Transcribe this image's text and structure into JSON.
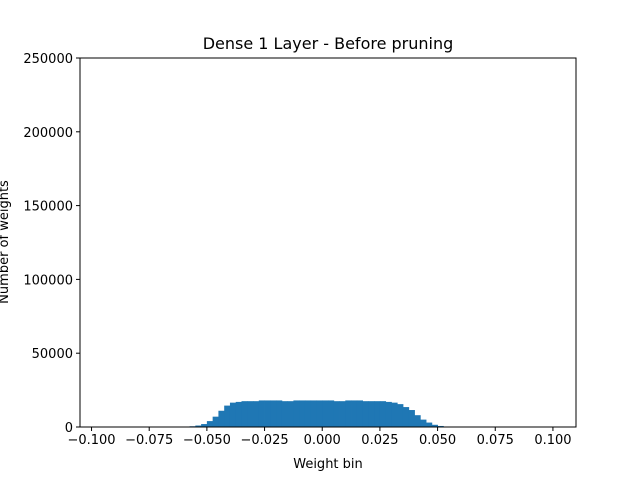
{
  "chart_data": {
    "type": "bar",
    "title": "Dense 1 Layer - Before pruning",
    "xlabel": "Weight bin",
    "ylabel": "Number of weights",
    "xlim": [
      -0.105,
      0.11
    ],
    "ylim": [
      0,
      250000
    ],
    "xticks": [
      -0.1,
      -0.075,
      -0.05,
      -0.025,
      0.0,
      0.025,
      0.05,
      0.075,
      0.1
    ],
    "xtick_labels": [
      "−0.100",
      "−0.075",
      "−0.050",
      "−0.025",
      "0.000",
      "0.025",
      "0.050",
      "0.075",
      "0.100"
    ],
    "yticks": [
      0,
      50000,
      100000,
      150000,
      200000,
      250000
    ],
    "ytick_labels": [
      "0",
      "50000",
      "100000",
      "150000",
      "200000",
      "250000"
    ],
    "grid": false,
    "bar_color": "#1f77b4",
    "bin_width": 0.0025,
    "bin_left_edges": [
      -0.0575,
      -0.055,
      -0.0525,
      -0.05,
      -0.0475,
      -0.045,
      -0.0425,
      -0.04,
      -0.0375,
      -0.035,
      -0.0325,
      -0.03,
      -0.0275,
      -0.025,
      -0.0225,
      -0.02,
      -0.0175,
      -0.015,
      -0.0125,
      -0.01,
      -0.0075,
      -0.005,
      -0.0025,
      0.0,
      0.0025,
      0.005,
      0.0075,
      0.01,
      0.0125,
      0.015,
      0.0175,
      0.02,
      0.0225,
      0.025,
      0.0275,
      0.03,
      0.0325,
      0.035,
      0.0375,
      0.04,
      0.0425,
      0.045,
      0.0475,
      0.05,
      0.0525,
      0.055,
      0.0575
    ],
    "values": [
      500,
      1000,
      2000,
      4000,
      7000,
      11000,
      14500,
      16500,
      17000,
      17500,
      17500,
      17500,
      18000,
      18000,
      18000,
      18000,
      17500,
      17500,
      18000,
      18000,
      18000,
      18000,
      18000,
      18000,
      18000,
      17500,
      17500,
      18000,
      18000,
      18000,
      17500,
      17500,
      17500,
      17500,
      17000,
      16500,
      15500,
      13500,
      11500,
      8000,
      5000,
      3000,
      1500,
      700,
      300,
      100,
      50
    ]
  }
}
